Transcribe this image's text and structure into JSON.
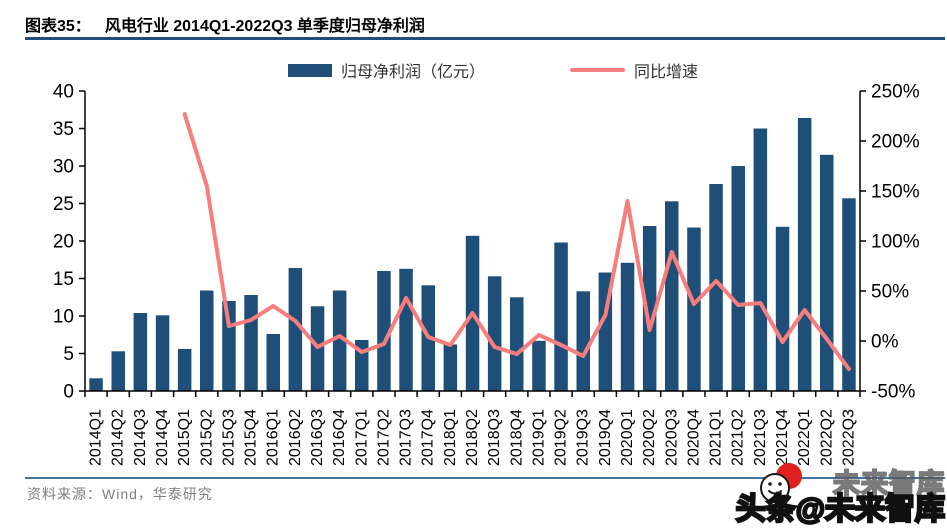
{
  "header": {
    "label": "图表35：",
    "title": "风电行业 2014Q1-2022Q3 单季度归母净利润"
  },
  "legend": {
    "bar_label": "归母净利润（亿元）",
    "line_label": "同比增速"
  },
  "chart_data": {
    "type": "bar+line",
    "title": "风电行业 2014Q1-2022Q3 单季度归母净利润",
    "categories": [
      "2014Q1",
      "2014Q2",
      "2014Q3",
      "2014Q4",
      "2015Q1",
      "2015Q2",
      "2015Q3",
      "2015Q4",
      "2016Q1",
      "2016Q2",
      "2016Q3",
      "2016Q4",
      "2017Q1",
      "2017Q2",
      "2017Q3",
      "2017Q4",
      "2018Q1",
      "2018Q2",
      "2018Q3",
      "2018Q4",
      "2019Q1",
      "2019Q2",
      "2019Q3",
      "2019Q4",
      "2020Q1",
      "2020Q2",
      "2020Q3",
      "2020Q4",
      "2021Q1",
      "2021Q2",
      "2021Q3",
      "2021Q4",
      "2022Q1",
      "2022Q2",
      "2022Q3"
    ],
    "series": [
      {
        "name": "归母净利润（亿元）",
        "type": "bar",
        "axis": "left",
        "unit": "亿元",
        "values": [
          1.7,
          5.3,
          10.4,
          10.1,
          5.6,
          13.4,
          12.0,
          12.8,
          7.6,
          16.4,
          11.3,
          13.4,
          6.8,
          16.0,
          16.3,
          14.1,
          6.2,
          20.7,
          15.3,
          12.5,
          6.7,
          19.8,
          13.3,
          15.8,
          17.1,
          22.0,
          25.3,
          21.8,
          27.6,
          30.0,
          35.0,
          21.9,
          36.4,
          31.5,
          25.7
        ]
      },
      {
        "name": "同比增速",
        "type": "line",
        "axis": "right",
        "unit": "%",
        "values": [
          null,
          null,
          null,
          null,
          227,
          155,
          15,
          21,
          35,
          20,
          -6,
          5,
          -11,
          -3,
          43,
          4,
          -4,
          28,
          -6,
          -13,
          6,
          -4,
          -15,
          26,
          140,
          11,
          89,
          37,
          60,
          36,
          38,
          -1,
          31,
          2,
          -28
        ]
      }
    ],
    "left_axis": {
      "min": 0,
      "max": 40,
      "step": 5,
      "tick_labels": [
        "0",
        "5",
        "10",
        "15",
        "20",
        "25",
        "30",
        "35",
        "40"
      ]
    },
    "right_axis": {
      "min": -50,
      "max": 250,
      "step": 50,
      "tick_labels": [
        "-50%",
        "0%",
        "50%",
        "100%",
        "150%",
        "200%",
        "250%"
      ]
    },
    "grid": false,
    "legend_position": "top"
  },
  "footer": {
    "source": "资料来源：Wind，华泰研究"
  },
  "watermark": {
    "shadow": "未来智库",
    "main": "头条@未来智库"
  },
  "colors": {
    "bar": "#1F4E79",
    "line": "#F87E7E",
    "axis": "#000000",
    "title_rule": "#1F4E79",
    "footer_rule": "#44719E",
    "footer_text": "#808080",
    "logo_red": "#E02020"
  }
}
